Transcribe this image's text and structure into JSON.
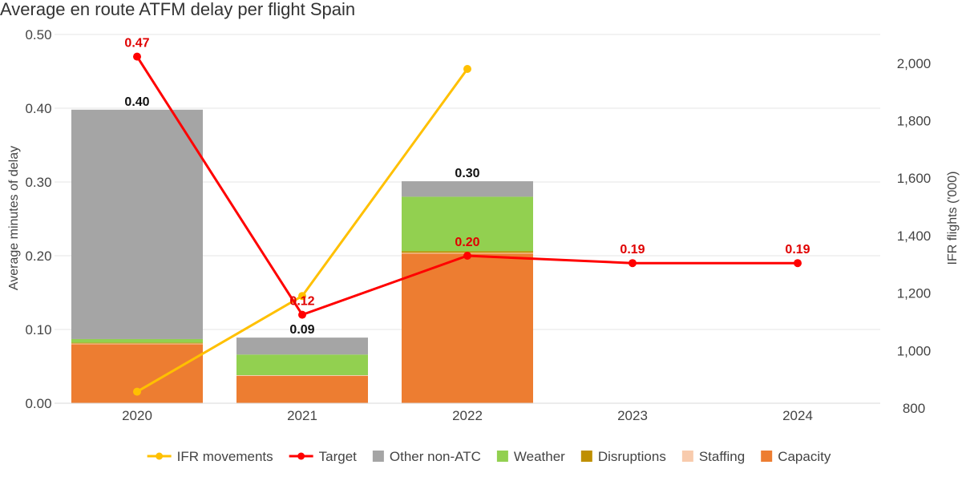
{
  "chart_data": {
    "type": "bar",
    "title": "Average en route ATFM delay per flight Spain",
    "categories": [
      "2020",
      "2021",
      "2022",
      "2023",
      "2024"
    ],
    "ylabel": "Average minutes of delay",
    "y2label": "IFR flights ('000)",
    "ylim": [
      0,
      0.5
    ],
    "y_ticks": [
      "0.00",
      "0.10",
      "0.20",
      "0.30",
      "0.40",
      "0.50"
    ],
    "y2lim": [
      800,
      2100
    ],
    "y2_ticks": [
      "800",
      "1,000",
      "1,200",
      "1,400",
      "1,600",
      "1,800",
      "2,000"
    ],
    "stacked_series": [
      {
        "name": "Capacity",
        "color": "#ed7d31",
        "values": [
          0.08,
          0.037,
          0.203,
          null,
          null
        ]
      },
      {
        "name": "Staffing",
        "color": "#f8cbad",
        "values": [
          0.001,
          0.001,
          0.001,
          null,
          null
        ]
      },
      {
        "name": "Disruptions",
        "color": "#bf8f00",
        "values": [
          0.001,
          0.0,
          0.002,
          null,
          null
        ]
      },
      {
        "name": "Weather",
        "color": "#92d050",
        "values": [
          0.005,
          0.028,
          0.074,
          null,
          null
        ]
      },
      {
        "name": "Other non-ATC",
        "color": "#a5a5a5",
        "values": [
          0.311,
          0.023,
          0.021,
          null,
          null
        ]
      }
    ],
    "totals": [
      "0.40",
      "0.09",
      "0.30",
      "",
      ""
    ],
    "line_series": [
      {
        "name": "IFR movements",
        "color": "#ffc000",
        "axis": "right",
        "values": [
          857,
          1190,
          1980,
          null,
          null
        ]
      },
      {
        "name": "Target",
        "color": "#ff0000",
        "axis": "left",
        "values": [
          0.47,
          0.12,
          0.2,
          0.19,
          0.19
        ],
        "labels": [
          "0.47",
          "0.12",
          "0.20",
          "0.19",
          "0.19"
        ]
      }
    ],
    "legend": {
      "position": "bottom",
      "items": [
        {
          "name": "IFR movements",
          "kind": "line",
          "color": "#ffc000"
        },
        {
          "name": "Target",
          "kind": "line",
          "color": "#ff0000"
        },
        {
          "name": "Other non-ATC",
          "kind": "box",
          "color": "#a5a5a5"
        },
        {
          "name": "Weather",
          "kind": "box",
          "color": "#92d050"
        },
        {
          "name": "Disruptions",
          "kind": "box",
          "color": "#bf8f00"
        },
        {
          "name": "Staffing",
          "kind": "box",
          "color": "#f8cbad"
        },
        {
          "name": "Capacity",
          "kind": "box",
          "color": "#ed7d31"
        }
      ]
    },
    "grid": true
  }
}
